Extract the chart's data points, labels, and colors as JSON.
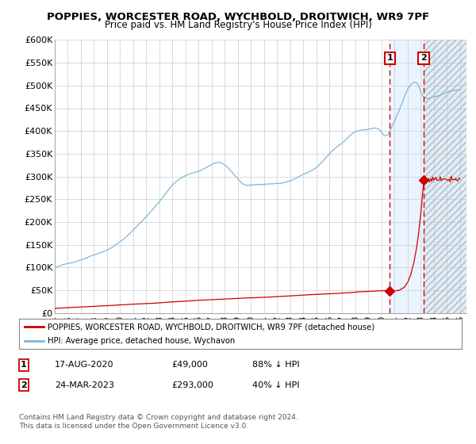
{
  "title": "POPPIES, WORCESTER ROAD, WYCHBOLD, DROITWICH, WR9 7PF",
  "subtitle": "Price paid vs. HM Land Registry's House Price Index (HPI)",
  "ylim": [
    0,
    600000
  ],
  "yticks": [
    0,
    50000,
    100000,
    150000,
    200000,
    250000,
    300000,
    350000,
    400000,
    450000,
    500000,
    550000,
    600000
  ],
  "ytick_labels": [
    "£0",
    "£50K",
    "£100K",
    "£150K",
    "£200K",
    "£250K",
    "£300K",
    "£350K",
    "£400K",
    "£450K",
    "£500K",
    "£550K",
    "£600K"
  ],
  "hpi_color": "#7ab8d9",
  "red_color": "#cc0000",
  "bg_color": "#ffffff",
  "grid_color": "#cccccc",
  "point1_x": 2020.627,
  "point1_y": 49000,
  "point2_x": 2023.228,
  "point2_y": 293000,
  "shade_color": "#ddeeff",
  "hatch_color": "#c8dcea",
  "legend_entry1": "POPPIES, WORCESTER ROAD, WYCHBOLD, DROITWICH, WR9 7PF (detached house)",
  "legend_entry2": "HPI: Average price, detached house, Wychavon",
  "table_row1": [
    "1",
    "17-AUG-2020",
    "£49,000",
    "88% ↓ HPI"
  ],
  "table_row2": [
    "2",
    "24-MAR-2023",
    "£293,000",
    "40% ↓ HPI"
  ],
  "footnote": "Contains HM Land Registry data © Crown copyright and database right 2024.\nThis data is licensed under the Open Government Licence v3.0.",
  "xmin": 1995,
  "xmax": 2026.5
}
